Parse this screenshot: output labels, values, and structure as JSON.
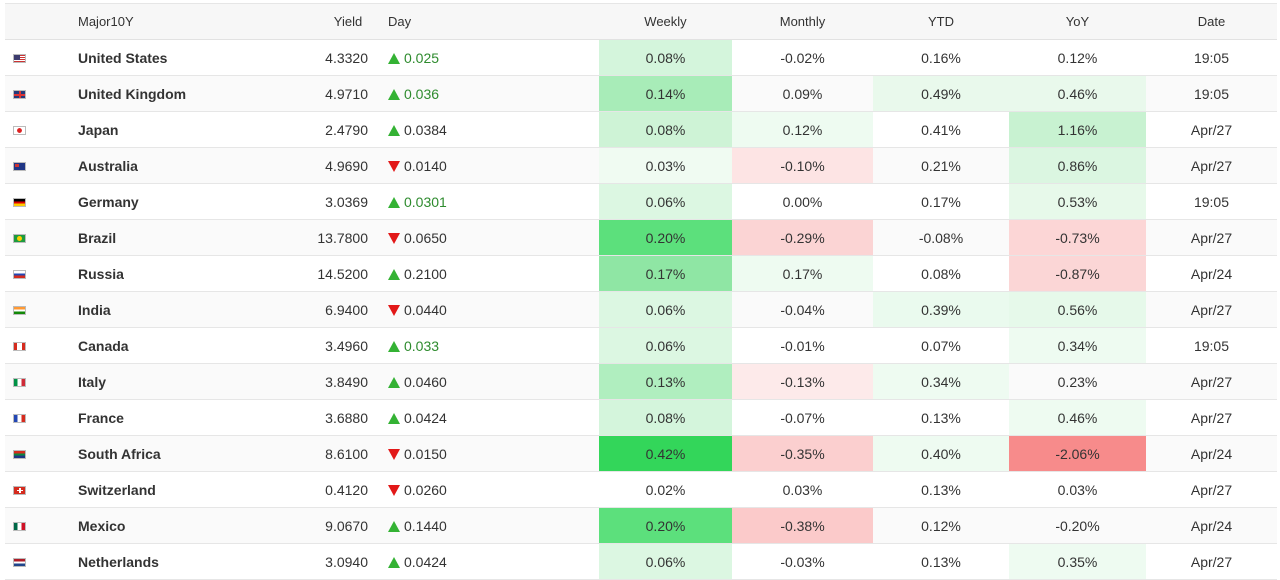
{
  "headers": {
    "name": "Major10Y",
    "yield": "Yield",
    "day": "Day",
    "weekly": "Weekly",
    "monthly": "Monthly",
    "ytd": "YTD",
    "yoy": "YoY",
    "date": "Date"
  },
  "rows": [
    {
      "flag": "us-flag-icon",
      "fc": "f-us",
      "name": "United States",
      "yield": "4.3320",
      "dir": "up",
      "day": "0.025",
      "day_color": "green",
      "weekly": "0.08%",
      "wbg": "#d4f5dc",
      "monthly": "-0.02%",
      "mbg": "",
      "ytd": "0.16%",
      "ybg": "",
      "yoy": "0.12%",
      "obg": "",
      "date": "19:05"
    },
    {
      "flag": "uk-flag-icon",
      "fc": "f-uk",
      "name": "United Kingdom",
      "yield": "4.9710",
      "dir": "up",
      "day": "0.036",
      "day_color": "green",
      "weekly": "0.14%",
      "wbg": "#a8ecb8",
      "monthly": "0.09%",
      "mbg": "",
      "ytd": "0.49%",
      "ybg": "#e9f9ec",
      "yoy": "0.46%",
      "obg": "#e9f9ec",
      "date": "19:05"
    },
    {
      "flag": "japan-flag-icon",
      "fc": "f-jp",
      "name": "Japan",
      "yield": "2.4790",
      "dir": "up",
      "day": "0.0384",
      "day_color": "dark",
      "weekly": "0.08%",
      "wbg": "#cef3d6",
      "monthly": "0.12%",
      "mbg": "#eefbf1",
      "ytd": "0.41%",
      "ybg": "",
      "yoy": "1.16%",
      "obg": "#c8f2d1",
      "date": "Apr/27"
    },
    {
      "flag": "australia-flag-icon",
      "fc": "f-au",
      "name": "Australia",
      "yield": "4.9690",
      "dir": "down",
      "day": "0.0140",
      "day_color": "dark",
      "weekly": "0.03%",
      "wbg": "#f0fbf2",
      "monthly": "-0.10%",
      "mbg": "#fde4e4",
      "ytd": "0.21%",
      "ybg": "",
      "yoy": "0.86%",
      "obg": "#dbf6e1",
      "date": "Apr/27"
    },
    {
      "flag": "germany-flag-icon",
      "fc": "f-de",
      "name": "Germany",
      "yield": "3.0369",
      "dir": "up",
      "day": "0.0301",
      "day_color": "green",
      "weekly": "0.06%",
      "wbg": "#dcf7e2",
      "monthly": "0.00%",
      "mbg": "",
      "ytd": "0.17%",
      "ybg": "",
      "yoy": "0.53%",
      "obg": "#e7f9ea",
      "date": "19:05"
    },
    {
      "flag": "brazil-flag-icon",
      "fc": "f-br",
      "name": "Brazil",
      "yield": "13.7800",
      "dir": "down",
      "day": "0.0650",
      "day_color": "dark",
      "weekly": "0.20%",
      "wbg": "#5ce07c",
      "monthly": "-0.29%",
      "mbg": "#fbd4d4",
      "ytd": "-0.08%",
      "ybg": "",
      "yoy": "-0.73%",
      "obg": "#fcd6d6",
      "date": "Apr/27"
    },
    {
      "flag": "russia-flag-icon",
      "fc": "f-ru",
      "name": "Russia",
      "yield": "14.5200",
      "dir": "up",
      "day": "0.2100",
      "day_color": "dark",
      "weekly": "0.17%",
      "wbg": "#8fe6a4",
      "monthly": "0.17%",
      "mbg": "#eefbf1",
      "ytd": "0.08%",
      "ybg": "",
      "yoy": "-0.87%",
      "obg": "#fbd6d6",
      "date": "Apr/24"
    },
    {
      "flag": "india-flag-icon",
      "fc": "f-in",
      "name": "India",
      "yield": "6.9400",
      "dir": "down",
      "day": "0.0440",
      "day_color": "dark",
      "weekly": "0.06%",
      "wbg": "#dcf7e2",
      "monthly": "-0.04%",
      "mbg": "",
      "ytd": "0.39%",
      "ybg": "#eafaee",
      "yoy": "0.56%",
      "obg": "#e6f9ea",
      "date": "Apr/27"
    },
    {
      "flag": "canada-flag-icon",
      "fc": "f-ca",
      "name": "Canada",
      "yield": "3.4960",
      "dir": "up",
      "day": "0.033",
      "day_color": "green",
      "weekly": "0.06%",
      "wbg": "#dcf7e2",
      "monthly": "-0.01%",
      "mbg": "",
      "ytd": "0.07%",
      "ybg": "",
      "yoy": "0.34%",
      "obg": "#eefbf1",
      "date": "19:05"
    },
    {
      "flag": "italy-flag-icon",
      "fc": "f-it",
      "name": "Italy",
      "yield": "3.8490",
      "dir": "up",
      "day": "0.0460",
      "day_color": "dark",
      "weekly": "0.13%",
      "wbg": "#b0eebf",
      "monthly": "-0.13%",
      "mbg": "#fdeaea",
      "ytd": "0.34%",
      "ybg": "#eefbf1",
      "yoy": "0.23%",
      "obg": "",
      "date": "Apr/27"
    },
    {
      "flag": "france-flag-icon",
      "fc": "f-fr",
      "name": "France",
      "yield": "3.6880",
      "dir": "up",
      "day": "0.0424",
      "day_color": "dark",
      "weekly": "0.08%",
      "wbg": "#d4f5dc",
      "monthly": "-0.07%",
      "mbg": "",
      "ytd": "0.13%",
      "ybg": "",
      "yoy": "0.46%",
      "obg": "#eefbf1",
      "date": "Apr/27"
    },
    {
      "flag": "south-africa-flag-icon",
      "fc": "f-za",
      "name": "South Africa",
      "yield": "8.6100",
      "dir": "down",
      "day": "0.0150",
      "day_color": "dark",
      "weekly": "0.42%",
      "wbg": "#33d65a",
      "monthly": "-0.35%",
      "mbg": "#fbcfcf",
      "ytd": "0.40%",
      "ybg": "#eefbf1",
      "yoy": "-2.06%",
      "obg": "#f78b8b",
      "date": "Apr/24"
    },
    {
      "flag": "switzerland-flag-icon",
      "fc": "f-ch",
      "name": "Switzerland",
      "yield": "0.4120",
      "dir": "down",
      "day": "0.0260",
      "day_color": "dark",
      "weekly": "0.02%",
      "wbg": "",
      "monthly": "0.03%",
      "mbg": "",
      "ytd": "0.13%",
      "ybg": "",
      "yoy": "0.03%",
      "obg": "",
      "date": "Apr/27"
    },
    {
      "flag": "mexico-flag-icon",
      "fc": "f-mx",
      "name": "Mexico",
      "yield": "9.0670",
      "dir": "up",
      "day": "0.1440",
      "day_color": "dark",
      "weekly": "0.20%",
      "wbg": "#5ce07c",
      "monthly": "-0.38%",
      "mbg": "#fbcaca",
      "ytd": "0.12%",
      "ybg": "",
      "yoy": "-0.20%",
      "obg": "",
      "date": "Apr/24"
    },
    {
      "flag": "netherlands-flag-icon",
      "fc": "f-nl",
      "name": "Netherlands",
      "yield": "3.0940",
      "dir": "up",
      "day": "0.0424",
      "day_color": "dark",
      "weekly": "0.06%",
      "wbg": "#dcf7e2",
      "monthly": "-0.03%",
      "mbg": "",
      "ytd": "0.13%",
      "ybg": "",
      "yoy": "0.35%",
      "obg": "#eefbf1",
      "date": "Apr/27"
    }
  ]
}
